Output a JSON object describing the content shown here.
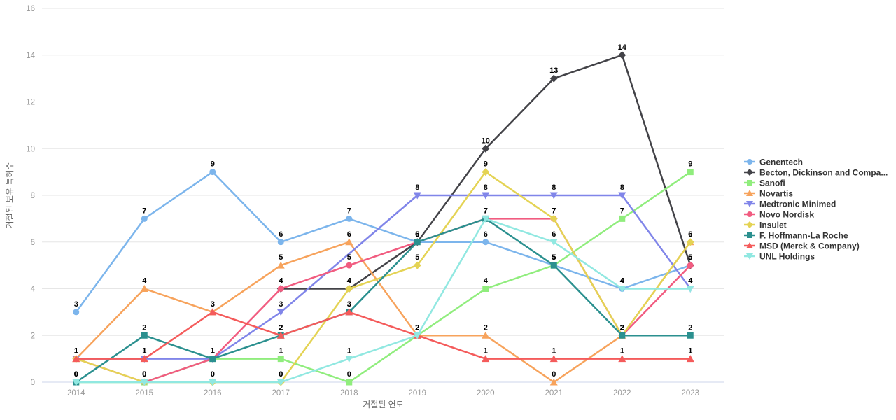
{
  "chart_data": {
    "type": "line",
    "title": "",
    "xlabel": "거절된 연도",
    "ylabel": "거절된 보유 특허수",
    "x": [
      2014,
      2015,
      2016,
      2017,
      2018,
      2019,
      2020,
      2021,
      2022,
      2023
    ],
    "ylim": [
      0,
      16
    ],
    "yticks": [
      0,
      2,
      4,
      6,
      8,
      10,
      12,
      14,
      16
    ],
    "grid": true,
    "legend_position": "right",
    "series": [
      {
        "name": "Genentech",
        "color": "#7cb5ec",
        "marker": "circle",
        "values": [
          3,
          7,
          9,
          6,
          7,
          6,
          6,
          5,
          4,
          5
        ]
      },
      {
        "name": "Becton, Dickinson and Compa...",
        "color": "#434348",
        "marker": "diamond",
        "values": [
          null,
          null,
          null,
          4,
          4,
          6,
          10,
          13,
          14,
          5
        ]
      },
      {
        "name": "Sanofi",
        "color": "#90ed7d",
        "marker": "square",
        "values": [
          0,
          0,
          1,
          1,
          0,
          2,
          4,
          5,
          7,
          9
        ]
      },
      {
        "name": "Novartis",
        "color": "#f7a35c",
        "marker": "triangle",
        "values": [
          1,
          4,
          3,
          5,
          6,
          2,
          2,
          0,
          2,
          6
        ]
      },
      {
        "name": "Medtronic Minimed",
        "color": "#8085e9",
        "marker": "triangle-down",
        "values": [
          1,
          1,
          1,
          3,
          null,
          8,
          8,
          8,
          8,
          4
        ]
      },
      {
        "name": "Novo Nordisk",
        "color": "#f15c80",
        "marker": "circle",
        "values": [
          1,
          0,
          1,
          4,
          5,
          6,
          7,
          7,
          2,
          5
        ]
      },
      {
        "name": "Insulet",
        "color": "#e4d354",
        "marker": "diamond",
        "values": [
          1,
          0,
          0,
          0,
          4,
          5,
          9,
          7,
          2,
          6
        ]
      },
      {
        "name": "F. Hoffmann-La Roche",
        "color": "#2b908f",
        "marker": "square",
        "values": [
          0,
          2,
          1,
          2,
          3,
          6,
          7,
          5,
          2,
          2
        ]
      },
      {
        "name": "MSD (Merck & Company)",
        "color": "#f45b5b",
        "marker": "triangle",
        "values": [
          1,
          1,
          3,
          2,
          3,
          2,
          1,
          1,
          1,
          1
        ]
      },
      {
        "name": "UNL Holdings",
        "color": "#91e8e1",
        "marker": "triangle-down",
        "values": [
          0,
          0,
          0,
          0,
          1,
          2,
          7,
          6,
          4,
          4
        ]
      }
    ],
    "colors": {
      "grid_line": "#e6e6e6",
      "axis_line": "#ccd6eb",
      "tick_text": "#999999",
      "axis_title_text": "#666666",
      "data_label_text": "#000000",
      "legend_text": "#333333"
    }
  }
}
